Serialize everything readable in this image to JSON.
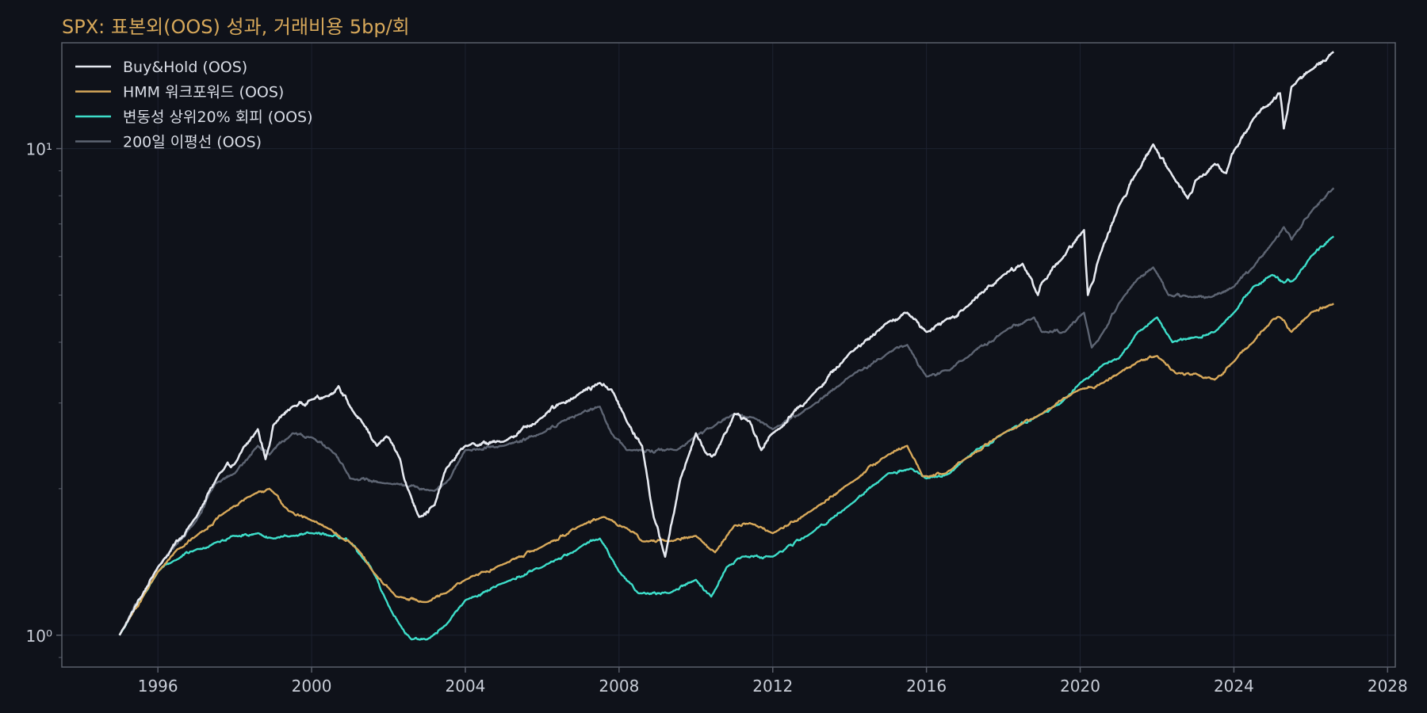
{
  "chart_data": {
    "type": "line",
    "title": "SPX: 표본외(OOS) 성과, 거래비용 5bp/회",
    "xlabel": "",
    "ylabel": "",
    "y_scale": "log",
    "xlim": [
      1993.5,
      2028.2
    ],
    "ylim": [
      0.86,
      16.5
    ],
    "x_ticks": [
      1996,
      2000,
      2004,
      2008,
      2012,
      2016,
      2020,
      2024,
      2028
    ],
    "x_tick_labels": [
      "1996",
      "2000",
      "2004",
      "2008",
      "2012",
      "2016",
      "2020",
      "2024",
      "2028"
    ],
    "y_ticks": [
      1,
      10
    ],
    "y_tick_labels": [
      "10⁰",
      "10¹"
    ],
    "grid": true,
    "legend_position": "top-left",
    "colors": {
      "background": "#0f121a",
      "axes_frame": "#5a5f6b",
      "grid": "#1d2230",
      "title": "#d7a85a",
      "tick_text": "#c9ced8"
    },
    "series": [
      {
        "name": "Buy&Hold (OOS)",
        "color": "#e6e9f0",
        "x": [
          1995.0,
          1996.0,
          1997.0,
          1997.6,
          1998.0,
          1998.6,
          1998.8,
          1999.0,
          1999.5,
          2000.0,
          2000.4,
          2000.7,
          2001.0,
          2001.3,
          2001.7,
          2002.0,
          2002.3,
          2002.5,
          2002.8,
          2003.2,
          2003.5,
          2004.0,
          2005.0,
          2006.0,
          2006.5,
          2007.0,
          2007.5,
          2007.8,
          2008.2,
          2008.6,
          2008.9,
          2009.2,
          2009.6,
          2010.0,
          2010.3,
          2010.5,
          2011.0,
          2011.4,
          2011.7,
          2012.0,
          2013.0,
          2014.0,
          2015.0,
          2015.5,
          2016.0,
          2016.5,
          2017.0,
          2018.0,
          2018.5,
          2018.9,
          2019.0,
          2019.5,
          2020.1,
          2020.2,
          2020.5,
          2021.0,
          2021.5,
          2021.9,
          2022.4,
          2022.8,
          2023.0,
          2023.5,
          2023.8,
          2024.0,
          2024.5,
          2025.0,
          2025.2,
          2025.3,
          2025.5,
          2026.0,
          2026.6
        ],
        "values": [
          1.0,
          1.38,
          1.75,
          2.15,
          2.25,
          2.65,
          2.3,
          2.7,
          2.95,
          3.05,
          3.1,
          3.25,
          2.95,
          2.75,
          2.45,
          2.55,
          2.3,
          2.0,
          1.75,
          1.85,
          2.2,
          2.45,
          2.5,
          2.8,
          3.0,
          3.15,
          3.3,
          3.2,
          2.75,
          2.45,
          1.75,
          1.45,
          2.1,
          2.6,
          2.35,
          2.35,
          2.85,
          2.75,
          2.4,
          2.6,
          3.1,
          3.8,
          4.4,
          4.6,
          4.2,
          4.45,
          4.7,
          5.5,
          5.8,
          5.0,
          5.3,
          5.9,
          6.8,
          5.0,
          6.0,
          7.6,
          9.0,
          10.2,
          8.8,
          7.9,
          8.6,
          9.3,
          8.9,
          9.9,
          11.5,
          12.5,
          13.0,
          11.0,
          13.4,
          14.5,
          15.8
        ]
      },
      {
        "name": "HMM 워크포워드 (OOS)",
        "color": "#d7a85a",
        "x": [
          1995.0,
          1996.0,
          1996.5,
          1997.0,
          1997.8,
          1998.5,
          1998.9,
          1999.4,
          2000.0,
          2000.5,
          2000.8,
          2001.2,
          2001.6,
          2002.2,
          2003.0,
          2003.5,
          2004.0,
          2005.0,
          2006.0,
          2007.0,
          2007.6,
          2008.2,
          2008.6,
          2009.3,
          2010.0,
          2010.5,
          2011.0,
          2011.4,
          2012.0,
          2013.0,
          2014.0,
          2015.0,
          2015.5,
          2015.9,
          2016.5,
          2017.0,
          2018.0,
          2019.0,
          2020.0,
          2020.6,
          2021.0,
          2021.5,
          2022.0,
          2022.5,
          2023.0,
          2023.5,
          2024.0,
          2024.5,
          2025.0,
          2025.2,
          2025.5,
          2026.0,
          2026.6
        ],
        "values": [
          1.0,
          1.35,
          1.5,
          1.6,
          1.8,
          1.95,
          2.0,
          1.8,
          1.72,
          1.65,
          1.58,
          1.5,
          1.35,
          1.2,
          1.17,
          1.22,
          1.3,
          1.4,
          1.52,
          1.68,
          1.75,
          1.66,
          1.56,
          1.56,
          1.6,
          1.48,
          1.68,
          1.7,
          1.62,
          1.8,
          2.05,
          2.35,
          2.45,
          2.12,
          2.15,
          2.3,
          2.6,
          2.85,
          3.2,
          3.3,
          3.45,
          3.65,
          3.75,
          3.45,
          3.45,
          3.35,
          3.65,
          4.0,
          4.45,
          4.5,
          4.2,
          4.6,
          4.8
        ]
      },
      {
        "name": "변동성 상위20% 회피 (OOS)",
        "color": "#3dddc9",
        "x": [
          1995.0,
          1996.0,
          1996.4,
          1997.0,
          1997.5,
          1998.0,
          1998.6,
          1999.0,
          1999.5,
          2000.0,
          2000.5,
          2000.8,
          2001.0,
          2001.3,
          2001.6,
          2002.0,
          2002.3,
          2002.6,
          2003.0,
          2003.5,
          2004.0,
          2005.0,
          2006.0,
          2007.0,
          2007.5,
          2008.0,
          2008.5,
          2009.3,
          2010.0,
          2010.4,
          2010.8,
          2011.2,
          2012.0,
          2013.0,
          2014.0,
          2015.0,
          2015.6,
          2016.0,
          2016.6,
          2017.0,
          2018.0,
          2019.0,
          2019.5,
          2020.0,
          2020.6,
          2021.0,
          2021.5,
          2022.0,
          2022.4,
          2023.0,
          2023.5,
          2024.0,
          2024.5,
          2025.0,
          2025.3,
          2025.6,
          2026.0,
          2026.6
        ],
        "values": [
          1.0,
          1.35,
          1.42,
          1.5,
          1.55,
          1.6,
          1.62,
          1.58,
          1.6,
          1.62,
          1.6,
          1.58,
          1.55,
          1.45,
          1.35,
          1.15,
          1.05,
          0.98,
          0.98,
          1.05,
          1.18,
          1.28,
          1.38,
          1.52,
          1.58,
          1.35,
          1.22,
          1.22,
          1.3,
          1.2,
          1.38,
          1.45,
          1.45,
          1.62,
          1.85,
          2.15,
          2.2,
          2.1,
          2.15,
          2.3,
          2.6,
          2.85,
          3.0,
          3.3,
          3.6,
          3.7,
          4.2,
          4.5,
          4.0,
          4.1,
          4.2,
          4.6,
          5.2,
          5.5,
          5.3,
          5.4,
          6.0,
          6.6
        ]
      },
      {
        "name": "200일 이평선 (OOS)",
        "color": "#5d6472",
        "x": [
          1995.0,
          1996.0,
          1997.0,
          1997.5,
          1998.0,
          1998.6,
          1998.9,
          1999.5,
          2000.0,
          2000.5,
          2000.8,
          2001.0,
          2002.0,
          2003.2,
          2003.6,
          2004.0,
          2005.0,
          2006.0,
          2006.5,
          2007.0,
          2007.5,
          2007.8,
          2008.2,
          2009.5,
          2009.8,
          2010.5,
          2011.0,
          2011.5,
          2012.0,
          2013.0,
          2014.0,
          2015.0,
          2015.5,
          2016.0,
          2016.6,
          2017.0,
          2018.0,
          2018.8,
          2019.0,
          2019.6,
          2020.1,
          2020.3,
          2020.6,
          2021.0,
          2021.5,
          2021.9,
          2022.3,
          2022.9,
          2023.4,
          2024.0,
          2024.5,
          2025.0,
          2025.3,
          2025.5,
          2026.0,
          2026.6
        ],
        "values": [
          1.0,
          1.38,
          1.72,
          2.05,
          2.15,
          2.45,
          2.35,
          2.6,
          2.55,
          2.4,
          2.25,
          2.1,
          2.05,
          1.98,
          2.1,
          2.4,
          2.45,
          2.6,
          2.75,
          2.85,
          2.95,
          2.6,
          2.4,
          2.4,
          2.5,
          2.7,
          2.85,
          2.8,
          2.65,
          2.95,
          3.4,
          3.8,
          3.95,
          3.4,
          3.5,
          3.7,
          4.2,
          4.5,
          4.2,
          4.2,
          4.6,
          3.9,
          4.2,
          4.8,
          5.4,
          5.7,
          5.0,
          4.95,
          4.95,
          5.2,
          5.7,
          6.4,
          6.9,
          6.5,
          7.4,
          8.3
        ]
      }
    ]
  }
}
